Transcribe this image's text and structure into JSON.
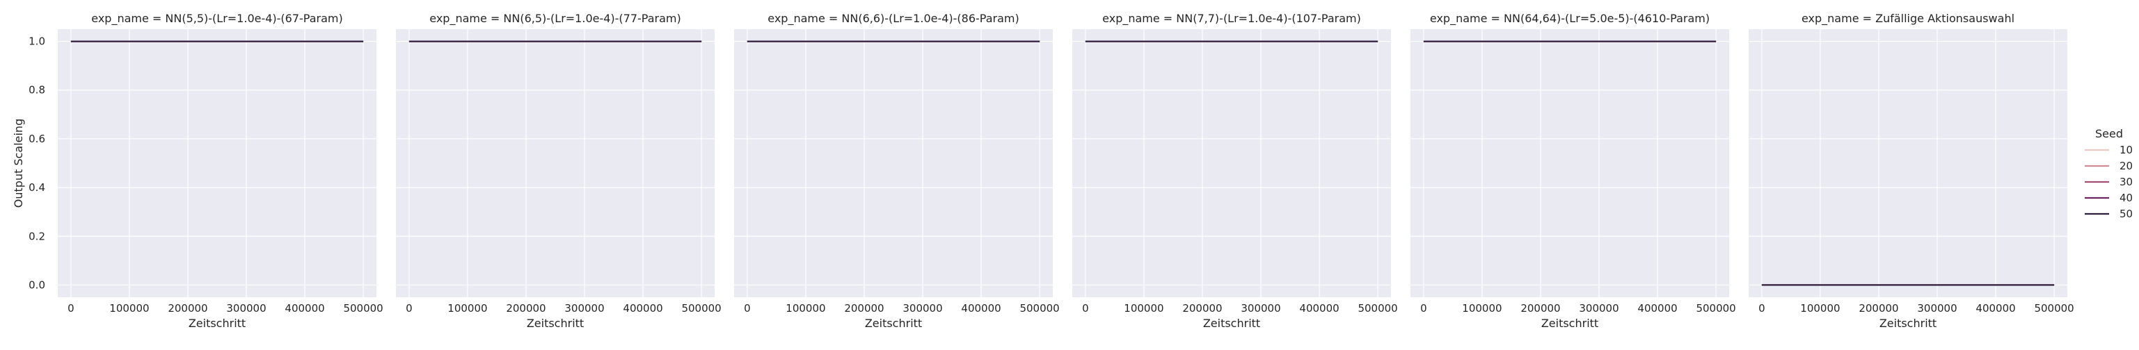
{
  "figure": {
    "ylabel": "Output Scaleing",
    "xlabel": "Zeitschritt"
  },
  "legend": {
    "title": "Seed",
    "placement": "right",
    "entries": [
      {
        "label": "10",
        "color": "#f0c9c0"
      },
      {
        "label": "20",
        "color": "#d08b94"
      },
      {
        "label": "30",
        "color": "#a24e75"
      },
      {
        "label": "40",
        "color": "#6a2460"
      },
      {
        "label": "50",
        "color": "#2d1e3e"
      }
    ]
  },
  "colors": {
    "plot_background": "#eaeaf2",
    "grid": "#ffffff",
    "text": "#262626"
  },
  "chart_data": [
    {
      "type": "line",
      "title": "exp_name = NN(5,5)-(Lr=1.0e-4)-(67-Param)",
      "xlabel": "Zeitschritt",
      "ylabel": "Output Scaleing",
      "xlim": [
        0,
        500000
      ],
      "ylim": [
        0.0,
        1.0
      ],
      "x_ticks": [
        0,
        100000,
        200000,
        300000,
        400000,
        500000
      ],
      "y_ticks": [
        0.0,
        0.2,
        0.4,
        0.6,
        0.8,
        1.0
      ],
      "grid": true,
      "series": [
        {
          "name": "10",
          "x": [
            0,
            500000
          ],
          "y": [
            1.0,
            1.0
          ]
        },
        {
          "name": "20",
          "x": [
            0,
            500000
          ],
          "y": [
            1.0,
            1.0
          ]
        },
        {
          "name": "30",
          "x": [
            0,
            500000
          ],
          "y": [
            1.0,
            1.0
          ]
        },
        {
          "name": "40",
          "x": [
            0,
            500000
          ],
          "y": [
            1.0,
            1.0
          ]
        },
        {
          "name": "50",
          "x": [
            0,
            500000
          ],
          "y": [
            1.0,
            1.0
          ]
        }
      ]
    },
    {
      "type": "line",
      "title": "exp_name = NN(6,5)-(Lr=1.0e-4)-(77-Param)",
      "xlabel": "Zeitschritt",
      "xlim": [
        0,
        500000
      ],
      "ylim": [
        0.0,
        1.0
      ],
      "x_ticks": [
        0,
        100000,
        200000,
        300000,
        400000,
        500000
      ],
      "grid": true,
      "series": [
        {
          "name": "10",
          "x": [
            0,
            500000
          ],
          "y": [
            1.0,
            1.0
          ]
        },
        {
          "name": "20",
          "x": [
            0,
            500000
          ],
          "y": [
            1.0,
            1.0
          ]
        },
        {
          "name": "30",
          "x": [
            0,
            500000
          ],
          "y": [
            1.0,
            1.0
          ]
        },
        {
          "name": "40",
          "x": [
            0,
            500000
          ],
          "y": [
            1.0,
            1.0
          ]
        },
        {
          "name": "50",
          "x": [
            0,
            500000
          ],
          "y": [
            1.0,
            1.0
          ]
        }
      ]
    },
    {
      "type": "line",
      "title": "exp_name = NN(6,6)-(Lr=1.0e-4)-(86-Param)",
      "xlabel": "Zeitschritt",
      "xlim": [
        0,
        500000
      ],
      "ylim": [
        0.0,
        1.0
      ],
      "x_ticks": [
        0,
        100000,
        200000,
        300000,
        400000,
        500000
      ],
      "grid": true,
      "series": [
        {
          "name": "10",
          "x": [
            0,
            500000
          ],
          "y": [
            1.0,
            1.0
          ]
        },
        {
          "name": "20",
          "x": [
            0,
            500000
          ],
          "y": [
            1.0,
            1.0
          ]
        },
        {
          "name": "30",
          "x": [
            0,
            500000
          ],
          "y": [
            1.0,
            1.0
          ]
        },
        {
          "name": "40",
          "x": [
            0,
            500000
          ],
          "y": [
            1.0,
            1.0
          ]
        },
        {
          "name": "50",
          "x": [
            0,
            500000
          ],
          "y": [
            1.0,
            1.0
          ]
        }
      ]
    },
    {
      "type": "line",
      "title": "exp_name = NN(7,7)-(Lr=1.0e-4)-(107-Param)",
      "xlabel": "Zeitschritt",
      "xlim": [
        0,
        500000
      ],
      "ylim": [
        0.0,
        1.0
      ],
      "x_ticks": [
        0,
        100000,
        200000,
        300000,
        400000,
        500000
      ],
      "grid": true,
      "series": [
        {
          "name": "10",
          "x": [
            0,
            500000
          ],
          "y": [
            1.0,
            1.0
          ]
        },
        {
          "name": "20",
          "x": [
            0,
            500000
          ],
          "y": [
            1.0,
            1.0
          ]
        },
        {
          "name": "30",
          "x": [
            0,
            500000
          ],
          "y": [
            1.0,
            1.0
          ]
        },
        {
          "name": "40",
          "x": [
            0,
            500000
          ],
          "y": [
            1.0,
            1.0
          ]
        },
        {
          "name": "50",
          "x": [
            0,
            500000
          ],
          "y": [
            1.0,
            1.0
          ]
        }
      ]
    },
    {
      "type": "line",
      "title": "exp_name = NN(64,64)-(Lr=5.0e-5)-(4610-Param)",
      "xlabel": "Zeitschritt",
      "xlim": [
        0,
        500000
      ],
      "ylim": [
        0.0,
        1.0
      ],
      "x_ticks": [
        0,
        100000,
        200000,
        300000,
        400000,
        500000
      ],
      "grid": true,
      "series": [
        {
          "name": "10",
          "x": [
            0,
            500000
          ],
          "y": [
            1.0,
            1.0
          ]
        },
        {
          "name": "20",
          "x": [
            0,
            500000
          ],
          "y": [
            1.0,
            1.0
          ]
        },
        {
          "name": "30",
          "x": [
            0,
            500000
          ],
          "y": [
            1.0,
            1.0
          ]
        },
        {
          "name": "40",
          "x": [
            0,
            500000
          ],
          "y": [
            1.0,
            1.0
          ]
        },
        {
          "name": "50",
          "x": [
            0,
            500000
          ],
          "y": [
            1.0,
            1.0
          ]
        }
      ]
    },
    {
      "type": "line",
      "title": "exp_name = Zufällige Aktionsauswahl",
      "xlabel": "Zeitschritt",
      "xlim": [
        0,
        500000
      ],
      "ylim": [
        0.0,
        1.0
      ],
      "x_ticks": [
        0,
        100000,
        200000,
        300000,
        400000,
        500000
      ],
      "grid": true,
      "series": [
        {
          "name": "10",
          "x": [
            0,
            500000
          ],
          "y": [
            0.0,
            0.0
          ]
        },
        {
          "name": "20",
          "x": [
            0,
            500000
          ],
          "y": [
            0.0,
            0.0
          ]
        },
        {
          "name": "30",
          "x": [
            0,
            500000
          ],
          "y": [
            0.0,
            0.0
          ]
        },
        {
          "name": "40",
          "x": [
            0,
            500000
          ],
          "y": [
            0.0,
            0.0
          ]
        },
        {
          "name": "50",
          "x": [
            0,
            500000
          ],
          "y": [
            0.0,
            0.0
          ]
        }
      ]
    }
  ]
}
